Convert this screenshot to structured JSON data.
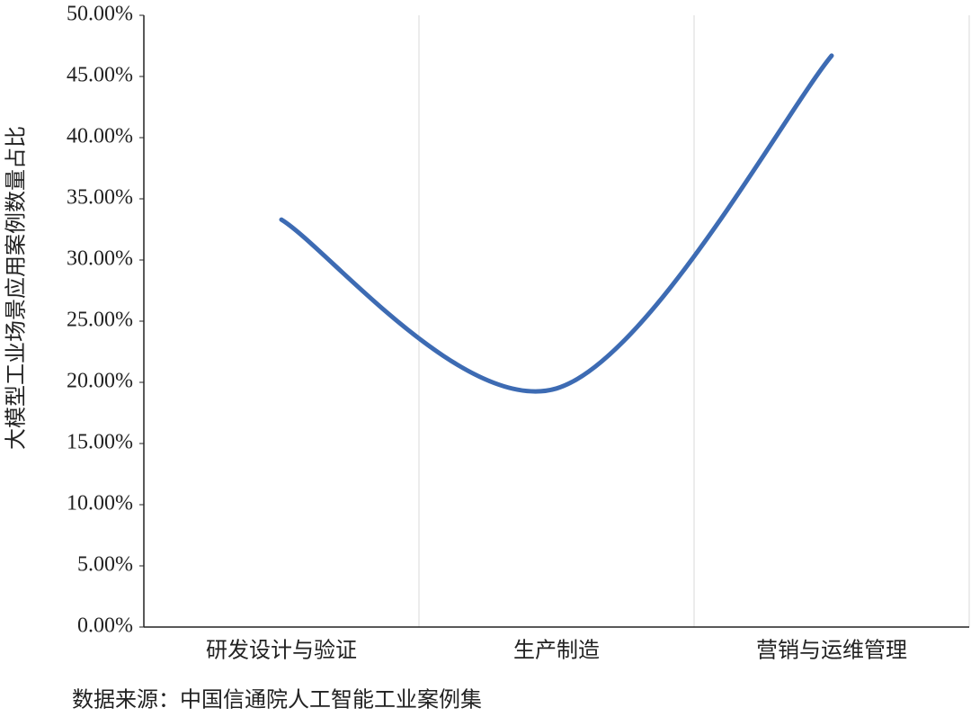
{
  "chart_data": {
    "type": "line",
    "y_label": "大模型工业场景应用案例数量占比",
    "source": "数据来源：中国信通院人工智能工业案例集",
    "categories": [
      "研发设计与验证",
      "生产制造",
      "营销与运维管理"
    ],
    "series": [
      {
        "name": "大模型工业场景应用案例数量占比",
        "color": "#3d6bb3",
        "values": [
          33.3,
          19.5,
          46.7
        ]
      }
    ],
    "smooth": true,
    "ylim": [
      0,
      50
    ],
    "yticks": [
      {
        "value": 0,
        "label": "0.00%"
      },
      {
        "value": 5,
        "label": "5.00%"
      },
      {
        "value": 10,
        "label": "10.00%"
      },
      {
        "value": 15,
        "label": "15.00%"
      },
      {
        "value": 20,
        "label": "20.00%"
      },
      {
        "value": 25,
        "label": "25.00%"
      },
      {
        "value": 30,
        "label": "30.00%"
      },
      {
        "value": 35,
        "label": "35.00%"
      },
      {
        "value": 40,
        "label": "40.00%"
      },
      {
        "value": 45,
        "label": "45.00%"
      },
      {
        "value": 50,
        "label": "50.00%"
      }
    ]
  }
}
